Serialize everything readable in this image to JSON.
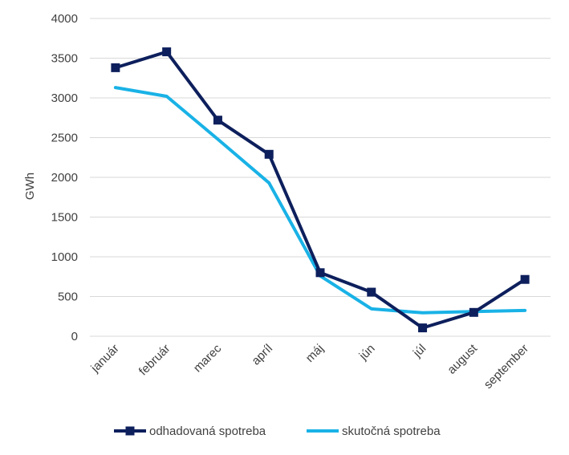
{
  "chart_data": {
    "type": "line",
    "categories": [
      "január",
      "február",
      "marec",
      "apríl",
      "máj",
      "jún",
      "júl",
      "august",
      "september"
    ],
    "series": [
      {
        "name": "odhadovaná spotreba",
        "color": "#0d1f5c",
        "marker": "square",
        "values": [
          3380,
          3580,
          2720,
          2290,
          800,
          555,
          105,
          300,
          715
        ]
      },
      {
        "name": "skutočná spotreba",
        "color": "#19b2e6",
        "marker": "none",
        "values": [
          3130,
          3020,
          2480,
          1930,
          760,
          345,
          295,
          310,
          325
        ]
      }
    ],
    "ylabel": "GWh",
    "ylim": [
      0,
      4000
    ],
    "yticks": [
      0,
      500,
      1000,
      1500,
      2000,
      2500,
      3000,
      3500,
      4000
    ],
    "grid": true,
    "legend": "bottom"
  }
}
